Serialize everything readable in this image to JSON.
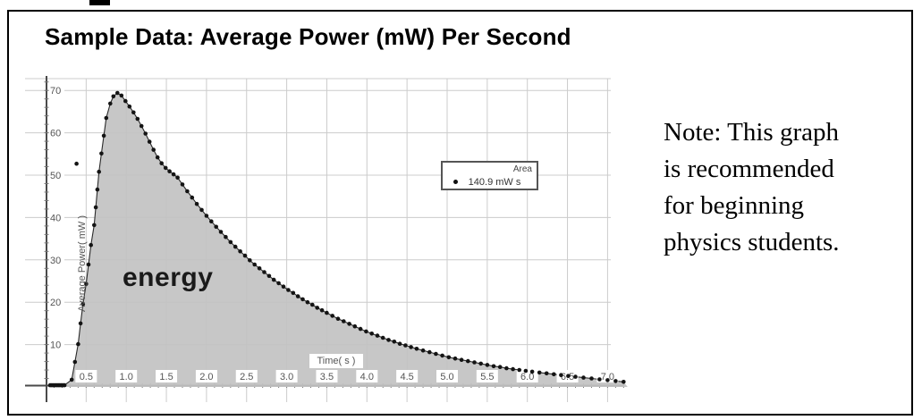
{
  "note": {
    "lines": [
      "Note: This graph",
      "is recommended",
      "for beginning",
      "physics students."
    ]
  },
  "chart_data": {
    "type": "area",
    "title": "Sample Data: Average Power (mW) Per Second",
    "xlabel": "Time( s )",
    "ylabel": "Average Power( mW )",
    "xlim": [
      0,
      7.3
    ],
    "ylim": [
      0,
      73
    ],
    "grid": true,
    "x_tick_labels": [
      "0.5",
      "1.0",
      "1.5",
      "2.0",
      "2.5",
      "3.0",
      "3.5",
      "4.0",
      "4.5",
      "5.0",
      "5.5",
      "6.0",
      "6.5",
      "7.0"
    ],
    "x_tick_values": [
      0.5,
      1.0,
      1.5,
      2.0,
      2.5,
      3.0,
      3.5,
      4.0,
      4.5,
      5.0,
      5.5,
      6.0,
      6.5,
      7.0
    ],
    "y_tick_labels": [
      "10",
      "20",
      "30",
      "40",
      "50",
      "60",
      "70"
    ],
    "y_tick_values": [
      10,
      20,
      30,
      40,
      50,
      60,
      70
    ],
    "x_minor_step": 0.1,
    "y_minor_step": 2,
    "area_label": "energy",
    "legend": {
      "header": "Area",
      "value": "140.9 mW s"
    },
    "series": [
      {
        "name": "Average Power (mW)",
        "points": [
          [
            0.05,
            0.4
          ],
          [
            0.07,
            0.4
          ],
          [
            0.09,
            0.4
          ],
          [
            0.11,
            0.4
          ],
          [
            0.13,
            0.4
          ],
          [
            0.15,
            0.4
          ],
          [
            0.17,
            0.4
          ],
          [
            0.19,
            0.4
          ],
          [
            0.21,
            0.4
          ],
          [
            0.23,
            0.4
          ],
          [
            0.32,
            1.7
          ],
          [
            0.36,
            5.9
          ],
          [
            0.4,
            10.1
          ],
          [
            0.43,
            15.0
          ],
          [
            0.46,
            19.6
          ],
          [
            0.5,
            24.3
          ],
          [
            0.53,
            28.9
          ],
          [
            0.56,
            33.5
          ],
          [
            0.6,
            38.2
          ],
          [
            0.62,
            42.4
          ],
          [
            0.64,
            46.6
          ],
          [
            0.66,
            50.8
          ],
          [
            0.69,
            55.1
          ],
          [
            0.72,
            59.3
          ],
          [
            0.75,
            63.5
          ],
          [
            0.8,
            66.9
          ],
          [
            0.84,
            68.6
          ],
          [
            0.89,
            69.4
          ],
          [
            0.94,
            68.8
          ],
          [
            0.99,
            67.5
          ],
          [
            1.04,
            66.2
          ],
          [
            1.09,
            64.8
          ],
          [
            1.14,
            63.3
          ],
          [
            1.19,
            61.6
          ],
          [
            1.24,
            59.8
          ],
          [
            1.29,
            57.9
          ],
          [
            1.34,
            56.0
          ],
          [
            1.39,
            54.2
          ],
          [
            1.44,
            52.8
          ],
          [
            1.49,
            51.7
          ],
          [
            1.54,
            50.9
          ],
          [
            1.59,
            50.2
          ],
          [
            1.64,
            49.4
          ],
          [
            1.7,
            47.8
          ],
          [
            1.76,
            46.2
          ],
          [
            1.82,
            44.7
          ],
          [
            1.88,
            43.2
          ],
          [
            1.94,
            41.8
          ],
          [
            2.0,
            40.4
          ],
          [
            2.06,
            39.1
          ],
          [
            2.12,
            37.8
          ],
          [
            2.18,
            36.6
          ],
          [
            2.24,
            35.4
          ],
          [
            2.3,
            34.2
          ],
          [
            2.36,
            33.1
          ],
          [
            2.42,
            32.0
          ],
          [
            2.48,
            31.0
          ],
          [
            2.54,
            29.9
          ],
          [
            2.6,
            28.9
          ],
          [
            2.66,
            28.0
          ],
          [
            2.72,
            27.1
          ],
          [
            2.78,
            26.2
          ],
          [
            2.84,
            25.3
          ],
          [
            2.9,
            24.5
          ],
          [
            2.96,
            23.7
          ],
          [
            3.02,
            22.9
          ],
          [
            3.08,
            22.2
          ],
          [
            3.14,
            21.4
          ],
          [
            3.2,
            20.7
          ],
          [
            3.26,
            20.0
          ],
          [
            3.32,
            19.4
          ],
          [
            3.38,
            18.7
          ],
          [
            3.44,
            18.1
          ],
          [
            3.5,
            17.5
          ],
          [
            3.57,
            16.8
          ],
          [
            3.64,
            16.1
          ],
          [
            3.71,
            15.5
          ],
          [
            3.78,
            14.9
          ],
          [
            3.85,
            14.3
          ],
          [
            3.92,
            13.7
          ],
          [
            3.99,
            13.1
          ],
          [
            4.06,
            12.6
          ],
          [
            4.13,
            12.1
          ],
          [
            4.2,
            11.6
          ],
          [
            4.27,
            11.1
          ],
          [
            4.34,
            10.7
          ],
          [
            4.41,
            10.2
          ],
          [
            4.48,
            9.8
          ],
          [
            4.55,
            9.4
          ],
          [
            4.62,
            9.0
          ],
          [
            4.7,
            8.6
          ],
          [
            4.78,
            8.2
          ],
          [
            4.86,
            7.8
          ],
          [
            4.94,
            7.4
          ],
          [
            5.02,
            7.0
          ],
          [
            5.1,
            6.7
          ],
          [
            5.18,
            6.4
          ],
          [
            5.26,
            6.1
          ],
          [
            5.34,
            5.8
          ],
          [
            5.42,
            5.5
          ],
          [
            5.5,
            5.2
          ],
          [
            5.58,
            4.9
          ],
          [
            5.66,
            4.7
          ],
          [
            5.74,
            4.4
          ],
          [
            5.82,
            4.2
          ],
          [
            5.9,
            4.0
          ],
          [
            5.98,
            3.8
          ],
          [
            6.06,
            3.6
          ],
          [
            6.15,
            3.4
          ],
          [
            6.24,
            3.2
          ],
          [
            6.33,
            3.0
          ],
          [
            6.42,
            2.8
          ],
          [
            6.51,
            2.6
          ],
          [
            6.6,
            2.4
          ],
          [
            6.7,
            2.2
          ],
          [
            6.8,
            2.0
          ],
          [
            6.9,
            1.8
          ],
          [
            7.0,
            1.6
          ],
          [
            7.1,
            1.4
          ],
          [
            7.2,
            1.2
          ]
        ]
      }
    ],
    "outliers": [
      [
        0.38,
        52.7
      ]
    ],
    "colors": {
      "fill": "#c2c2c2",
      "dot": "#141414",
      "line": "#2a2a2a",
      "grid": "#cccccc",
      "axis": "#4a4a4a",
      "minor_tick": "#777777",
      "tick_text": "#555555"
    }
  }
}
